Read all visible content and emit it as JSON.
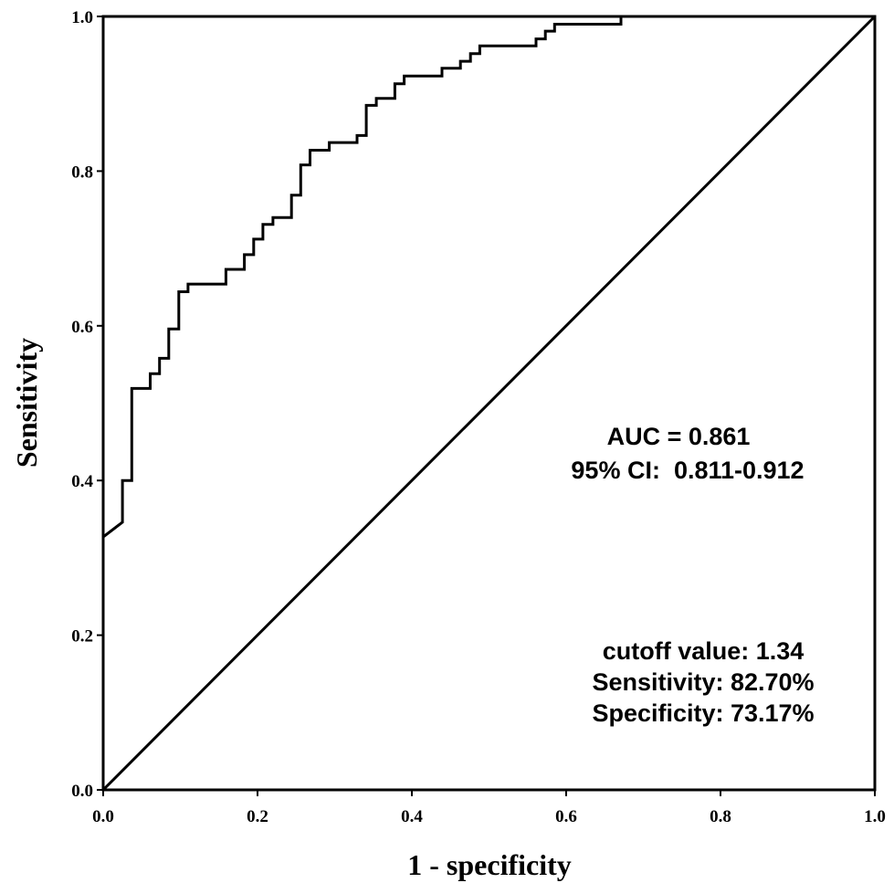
{
  "chart_data": {
    "type": "line",
    "xlabel": "1 - specificity",
    "ylabel": "Sensitivity",
    "xlim": [
      0,
      1
    ],
    "ylim": [
      0,
      1
    ],
    "x_ticks": [
      "0.0",
      "0.2",
      "0.4",
      "0.6",
      "0.8",
      "1.0"
    ],
    "y_ticks": [
      "0.0",
      "0.2",
      "0.4",
      "0.6",
      "0.8",
      "1.0"
    ],
    "grid": false,
    "series": [
      {
        "role": "roc-curve",
        "x": [
          0.0,
          0.0,
          0.025,
          0.025,
          0.037,
          0.037,
          0.061,
          0.061,
          0.073,
          0.073,
          0.085,
          0.085,
          0.098,
          0.098,
          0.11,
          0.11,
          0.159,
          0.159,
          0.183,
          0.183,
          0.195,
          0.195,
          0.207,
          0.207,
          0.22,
          0.22,
          0.244,
          0.244,
          0.256,
          0.256,
          0.268,
          0.268,
          0.293,
          0.293,
          0.329,
          0.329,
          0.341,
          0.341,
          0.354,
          0.354,
          0.378,
          0.378,
          0.39,
          0.39,
          0.439,
          0.439,
          0.463,
          0.463,
          0.476,
          0.476,
          0.488,
          0.488,
          0.561,
          0.561,
          0.573,
          0.573,
          0.585,
          0.585,
          0.671,
          0.671,
          0.707,
          0.707,
          0.72,
          0.72,
          0.756,
          0.756,
          0.866,
          0.866,
          1.0
        ],
        "y": [
          0.0,
          0.327,
          0.346,
          0.4,
          0.4,
          0.519,
          0.519,
          0.538,
          0.538,
          0.558,
          0.558,
          0.596,
          0.596,
          0.644,
          0.644,
          0.654,
          0.654,
          0.673,
          0.673,
          0.692,
          0.692,
          0.712,
          0.712,
          0.731,
          0.731,
          0.74,
          0.74,
          0.769,
          0.769,
          0.808,
          0.808,
          0.827,
          0.827,
          0.837,
          0.837,
          0.846,
          0.846,
          0.885,
          0.885,
          0.894,
          0.894,
          0.913,
          0.913,
          0.923,
          0.923,
          0.933,
          0.933,
          0.942,
          0.942,
          0.952,
          0.952,
          0.962,
          0.962,
          0.971,
          0.971,
          0.981,
          0.981,
          0.99,
          0.99,
          1.0,
          1.0,
          1.0,
          1.0,
          1.0,
          1.0,
          1.0,
          1.0,
          1.0,
          1.0
        ]
      },
      {
        "role": "reference-line",
        "x": [
          0,
          1
        ],
        "y": [
          0,
          1
        ]
      }
    ],
    "annotations": {
      "auc": "AUC = 0.861",
      "ci": "95% CI:  0.811-0.912",
      "cutoff": "cutoff value: 1.34",
      "sensitivity": "Sensitivity: 82.70%",
      "specificity": "Specificity: 73.17%"
    }
  }
}
